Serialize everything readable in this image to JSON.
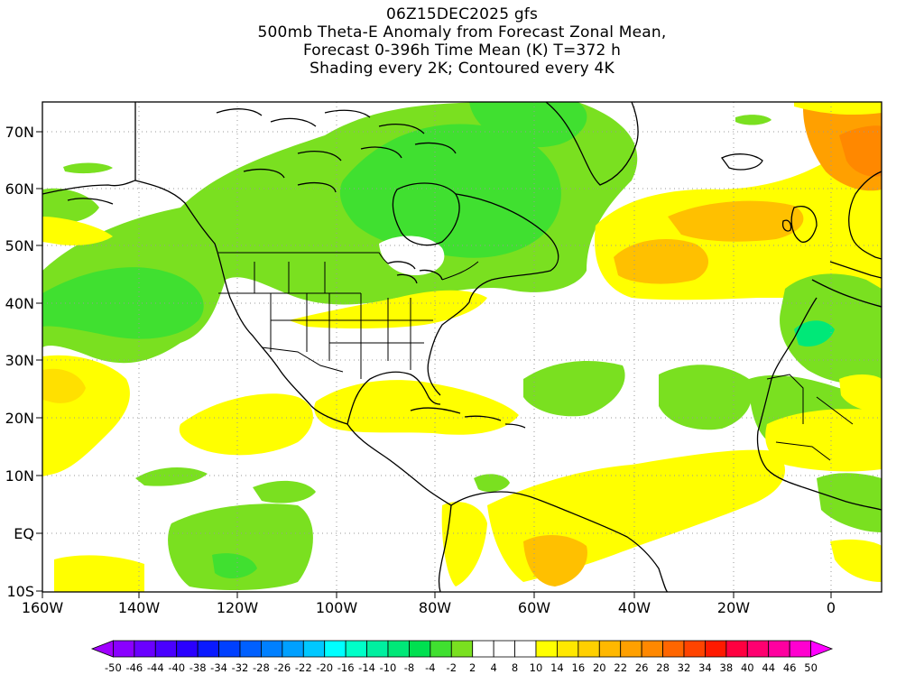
{
  "title": {
    "line1": "06Z15DEC2025 gfs",
    "line2": "500mb Theta-E Anomaly from Forecast Zonal Mean,",
    "line3": "Forecast 0-396h Time Mean (K) T=372 h",
    "line4": "Shading every 2K; Contoured every 4K"
  },
  "axes": {
    "lat_labels": [
      "70N",
      "60N",
      "50N",
      "40N",
      "30N",
      "20N",
      "10N",
      "EQ",
      "10S"
    ],
    "lon_labels": [
      "160W",
      "140W",
      "120W",
      "100W",
      "80W",
      "60W",
      "40W",
      "20W",
      "0"
    ]
  },
  "colorbar": {
    "labels": [
      "-50",
      "-46",
      "-44",
      "-40",
      "-38",
      "-34",
      "-32",
      "-28",
      "-26",
      "-22",
      "-20",
      "-16",
      "-14",
      "-10",
      "-8",
      "-4",
      "-2",
      "2",
      "4",
      "8",
      "10",
      "14",
      "16",
      "20",
      "22",
      "26",
      "28",
      "32",
      "34",
      "38",
      "40",
      "44",
      "46",
      "50"
    ],
    "colors": [
      "#a000ff",
      "#8a00ff",
      "#6a00ff",
      "#4a00ff",
      "#2a00ff",
      "#0a1aff",
      "#0040ff",
      "#0060ff",
      "#0080ff",
      "#00a0ff",
      "#00c8ff",
      "#00ffff",
      "#00ffc8",
      "#00f0a0",
      "#00e878",
      "#00e050",
      "#40e030",
      "#7ae020",
      "#ffffff",
      "#ffffff",
      "#ffffff",
      "#ffff00",
      "#ffe800",
      "#ffd000",
      "#ffb800",
      "#ffa000",
      "#ff8800",
      "#ff6600",
      "#ff4400",
      "#ff1a00",
      "#ff0040",
      "#ff0070",
      "#ff00a0",
      "#ff00d0",
      "#ff00ff"
    ]
  },
  "map_colors": {
    "green_light": "#7ae020",
    "green_mid": "#40e030",
    "green_teal": "#00e878",
    "cyan": "#00ffc8",
    "yellow": "#ffff00",
    "yellow_dark": "#ffe000",
    "orange_light": "#ffc000",
    "orange": "#ffa000",
    "orange_dark": "#ff8800"
  }
}
